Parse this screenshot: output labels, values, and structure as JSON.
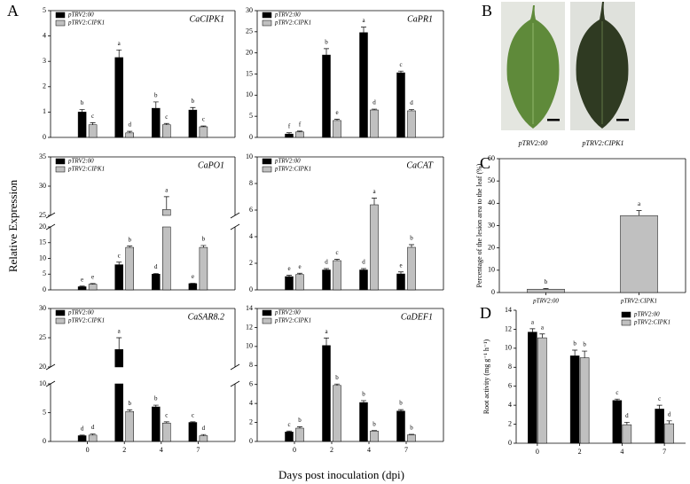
{
  "figure": {
    "panel_labels": [
      "A",
      "B",
      "C",
      "D"
    ],
    "y_label": "Relative Expression",
    "x_label": "Days post inoculation (dpi)",
    "photo_labels": [
      "pTRV2:00",
      "pTRV2:CIPK1"
    ]
  },
  "chart_data": [
    {
      "type": "bar",
      "title": "CaCIPK1",
      "categories": [
        null,
        null,
        null,
        null
      ],
      "legend": "upper left",
      "series": [
        {
          "name": "pTRV2:00",
          "color": "#000000",
          "values": [
            1.0,
            3.15,
            1.15,
            1.08
          ],
          "errors": [
            0.1,
            0.3,
            0.25,
            0.1
          ],
          "letters": [
            "b",
            "a",
            "b",
            "b"
          ]
        },
        {
          "name": "pTRV2:CIPK1",
          "color": "#c0c0c0",
          "values": [
            0.5,
            0.18,
            0.5,
            0.42
          ],
          "errors": [
            0.08,
            0.06,
            0.05,
            0.03
          ],
          "letters": [
            "c",
            "d",
            "c",
            "c"
          ]
        }
      ],
      "ylim": [
        0,
        5
      ],
      "yticks": [
        0,
        1,
        2,
        3,
        4,
        5
      ]
    },
    {
      "type": "bar",
      "title": "CaPR1",
      "categories": [
        null,
        null,
        null,
        null
      ],
      "legend": "upper left",
      "series": [
        {
          "name": "pTRV2:00",
          "color": "#000000",
          "values": [
            0.8,
            19.5,
            24.8,
            15.3
          ],
          "errors": [
            0.3,
            1.5,
            1.3,
            0.4
          ],
          "letters": [
            "f",
            "b",
            "a",
            "c"
          ]
        },
        {
          "name": "pTRV2:CIPK1",
          "color": "#c0c0c0",
          "values": [
            1.3,
            4.0,
            6.5,
            6.3
          ],
          "errors": [
            0.2,
            0.3,
            0.2,
            0.3
          ],
          "letters": [
            "f",
            "e",
            "d",
            "d"
          ]
        }
      ],
      "ylim": [
        0,
        30
      ],
      "yticks": [
        0,
        5,
        10,
        15,
        20,
        25,
        30
      ]
    },
    {
      "type": "bar",
      "title": "CaPO1",
      "categories": [
        null,
        null,
        null,
        null
      ],
      "legend": "upper left",
      "series": [
        {
          "name": "pTRV2:00",
          "color": "#000000",
          "values": [
            1.0,
            8.0,
            5.0,
            2.0
          ],
          "errors": [
            0.2,
            0.8,
            0.2,
            0.1
          ],
          "letters": [
            "e",
            "c",
            "d",
            "e"
          ]
        },
        {
          "name": "pTRV2:CIPK1",
          "color": "#c0c0c0",
          "values": [
            1.8,
            13.5,
            26,
            13.5
          ],
          "errors": [
            0.2,
            0.4,
            2.2,
            0.6
          ],
          "letters": [
            "e",
            "b",
            "a",
            "b"
          ]
        }
      ],
      "ylim": [
        0,
        35
      ],
      "ylim_segments": [
        [
          0,
          20
        ],
        [
          25,
          35
        ]
      ],
      "yticks": [
        0,
        5,
        10,
        15,
        20,
        25,
        30,
        35
      ]
    },
    {
      "type": "bar",
      "title": "CaCAT",
      "categories": [
        null,
        null,
        null,
        null
      ],
      "legend": "upper left",
      "series": [
        {
          "name": "pTRV2:00",
          "color": "#000000",
          "values": [
            1.0,
            1.5,
            1.5,
            1.2
          ],
          "errors": [
            0.1,
            0.1,
            0.1,
            0.15
          ],
          "letters": [
            "e",
            "d",
            "d",
            "e"
          ]
        },
        {
          "name": "pTRV2:CIPK1",
          "color": "#c0c0c0",
          "values": [
            1.15,
            2.2,
            6.4,
            3.2
          ],
          "errors": [
            0.1,
            0.1,
            0.5,
            0.2
          ],
          "letters": [
            "e",
            "c",
            "a",
            "b"
          ]
        }
      ],
      "ylim": [
        0,
        10
      ],
      "yticks": [
        0,
        2,
        4,
        6,
        8,
        10
      ]
    },
    {
      "type": "bar",
      "title": "CaSAR8.2",
      "categories": [
        "0",
        "2",
        "4",
        "7"
      ],
      "legend": "upper left",
      "series": [
        {
          "name": "pTRV2:00",
          "color": "#000000",
          "values": [
            1.0,
            23,
            6.0,
            3.3
          ],
          "errors": [
            0.1,
            2,
            0.3,
            0.1
          ],
          "letters": [
            "d",
            "a",
            "b",
            "c"
          ]
        },
        {
          "name": "pTRV2:CIPK1",
          "color": "#c0c0c0",
          "values": [
            1.1,
            5.2,
            3.2,
            1.0
          ],
          "errors": [
            0.2,
            0.3,
            0.2,
            0.2
          ],
          "letters": [
            "d",
            "b",
            "c",
            "d"
          ]
        }
      ],
      "ylim": [
        0,
        30
      ],
      "ylim_segments": [
        [
          0,
          10
        ],
        [
          20,
          30
        ]
      ],
      "yticks": [
        0,
        5,
        10,
        20,
        25,
        30
      ]
    },
    {
      "type": "bar",
      "title": "CaDEF1",
      "categories": [
        "0",
        "2",
        "4",
        "7"
      ],
      "legend": "upper left",
      "series": [
        {
          "name": "pTRV2:00",
          "color": "#000000",
          "values": [
            1.0,
            10.1,
            4.1,
            3.2
          ],
          "errors": [
            0.1,
            0.8,
            0.2,
            0.15
          ],
          "letters": [
            "c",
            "a",
            "b",
            "b"
          ]
        },
        {
          "name": "pTRV2:CIPK1",
          "color": "#c0c0c0",
          "values": [
            1.4,
            5.9,
            1.1,
            0.7
          ],
          "errors": [
            0.15,
            0.15,
            0.05,
            0.05
          ],
          "letters": [
            "b",
            "b",
            "b",
            "b"
          ]
        }
      ],
      "ylim": [
        0,
        14
      ],
      "yticks": [
        0,
        2,
        4,
        6,
        8,
        10,
        12,
        14
      ]
    },
    {
      "type": "bar",
      "y_label": "Percentage of the lesion area to the leaf (%)",
      "categories": [
        "pTRV2:00",
        "pTRV2:CIPK1"
      ],
      "series": [
        {
          "color": "#c0c0c0",
          "values": [
            1.5,
            34.5
          ],
          "errors": [
            0.3,
            2.2
          ],
          "letters": [
            "b",
            "a"
          ]
        }
      ],
      "ylim": [
        0,
        60
      ],
      "yticks": [
        0,
        10,
        20,
        30,
        40,
        50,
        60
      ]
    },
    {
      "type": "bar",
      "y_label": "Root activity (mg g⁻¹ h⁻¹)",
      "categories": [
        "0",
        "2",
        "4",
        "7"
      ],
      "legend": "upper right",
      "series": [
        {
          "name": "pTRV2:00",
          "color": "#000000",
          "values": [
            11.7,
            9.2,
            4.5,
            3.6
          ],
          "errors": [
            0.35,
            0.6,
            0.15,
            0.4
          ],
          "letters": [
            "a",
            "b",
            "c",
            "c"
          ]
        },
        {
          "name": "pTRV2:CIPK1",
          "color": "#c0c0c0",
          "values": [
            11.1,
            9.0,
            1.95,
            2.05
          ],
          "errors": [
            0.4,
            0.7,
            0.25,
            0.3
          ],
          "letters": [
            "a",
            "b",
            "d",
            "d"
          ]
        }
      ],
      "ylim": [
        0,
        14
      ],
      "yticks": [
        0,
        2,
        4,
        6,
        8,
        10,
        12,
        14
      ]
    }
  ]
}
